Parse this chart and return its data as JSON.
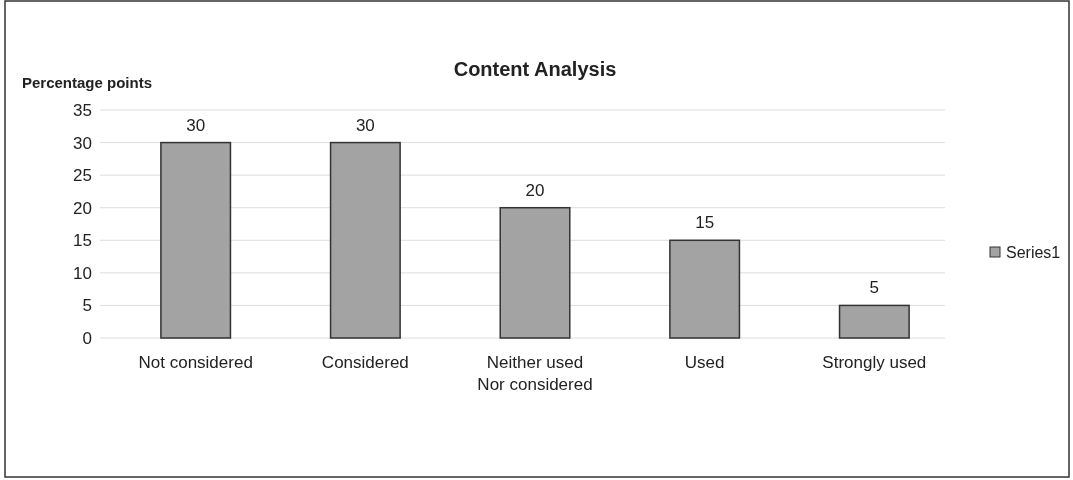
{
  "chart_data": {
    "type": "bar",
    "title": "Content Analysis",
    "ylabel": "Percentage points",
    "categories": [
      "Not considered",
      "Considered",
      "Neither used\nNor considered",
      "Used",
      "Strongly used"
    ],
    "series": [
      {
        "name": "Series1",
        "color": "#a3a3a3",
        "values": [
          30,
          30,
          20,
          15,
          5
        ]
      }
    ],
    "ylim": [
      0,
      35
    ],
    "yticks": [
      0,
      5,
      10,
      15,
      20,
      25,
      30,
      35
    ],
    "grid": "y",
    "legend": "right",
    "data_labels": true
  }
}
